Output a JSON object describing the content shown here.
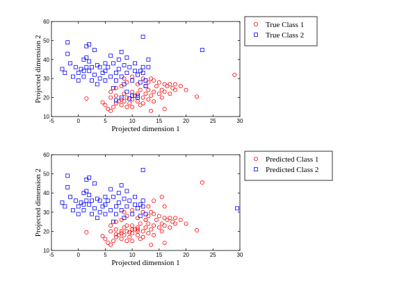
{
  "chart_data": [
    {
      "type": "scatter",
      "xlabel": "Projected dimension 1",
      "ylabel": "Projected dimension 2",
      "xlim": [
        -5,
        30
      ],
      "ylim": [
        10,
        60
      ],
      "xticks": [
        "-5",
        "0",
        "5",
        "10",
        "15",
        "20",
        "25",
        "30"
      ],
      "yticks": [
        "10",
        "20",
        "30",
        "40",
        "50",
        "60"
      ],
      "legend_position": "outside-top-right",
      "series": [
        {
          "name": "True Class 1",
          "marker": "circle",
          "color": "#ff0000",
          "points": [
            [
              1.5,
              19.5
            ],
            [
              4.5,
              17.5
            ],
            [
              5,
              16
            ],
            [
              5.5,
              14
            ],
            [
              6,
              13
            ],
            [
              6,
              20
            ],
            [
              6.5,
              15
            ],
            [
              7,
              17
            ],
            [
              7,
              21
            ],
            [
              7.5,
              18
            ],
            [
              8,
              16
            ],
            [
              8,
              19
            ],
            [
              8.5,
              22
            ],
            [
              8.5,
              18
            ],
            [
              9,
              15
            ],
            [
              9,
              20
            ],
            [
              9.5,
              17
            ],
            [
              10,
              23
            ],
            [
              10,
              19
            ],
            [
              10,
              15
            ],
            [
              10.5,
              21
            ],
            [
              11,
              18
            ],
            [
              11,
              22
            ],
            [
              11.5,
              16
            ],
            [
              11.5,
              24
            ],
            [
              12,
              20
            ],
            [
              12,
              17
            ],
            [
              12.5,
              22
            ],
            [
              12.5,
              26
            ],
            [
              13,
              19
            ],
            [
              13,
              24
            ],
            [
              13,
              28
            ],
            [
              13.5,
              13
            ],
            [
              13.5,
              21
            ],
            [
              14,
              23
            ],
            [
              14,
              18
            ],
            [
              14.5,
              26
            ],
            [
              15,
              22
            ],
            [
              15,
              28
            ],
            [
              15.5,
              20
            ],
            [
              15.5,
              24
            ],
            [
              16,
              14
            ],
            [
              16,
              23
            ],
            [
              16.5,
              26
            ],
            [
              17,
              22
            ],
            [
              17,
              27
            ],
            [
              17.5,
              25
            ],
            [
              18,
              24
            ],
            [
              18,
              27
            ],
            [
              19,
              26
            ],
            [
              20,
              24
            ],
            [
              22,
              20.5
            ],
            [
              29,
              32
            ],
            [
              8,
              26
            ],
            [
              9,
              28
            ],
            [
              10,
              31
            ],
            [
              12,
              30
            ],
            [
              14,
              29
            ],
            [
              8.5,
              30
            ],
            [
              11,
              27
            ],
            [
              6,
              23
            ],
            [
              7,
              25
            ],
            [
              16,
              27
            ],
            [
              13.5,
              30
            ]
          ]
        },
        {
          "name": "True Class 2",
          "marker": "square",
          "color": "#0000ff",
          "points": [
            [
              -3,
              35
            ],
            [
              -2.5,
              33
            ],
            [
              -2,
              49
            ],
            [
              -2,
              43
            ],
            [
              -1.5,
              38
            ],
            [
              -1,
              31
            ],
            [
              -0.5,
              36
            ],
            [
              0,
              33
            ],
            [
              0,
              29
            ],
            [
              0.5,
              35
            ],
            [
              1,
              40
            ],
            [
              1,
              34
            ],
            [
              1,
              31
            ],
            [
              1.5,
              47
            ],
            [
              1.5,
              41
            ],
            [
              1.5,
              36
            ],
            [
              2,
              48
            ],
            [
              2,
              39
            ],
            [
              2,
              34
            ],
            [
              2.5,
              29
            ],
            [
              2.5,
              36
            ],
            [
              3,
              45
            ],
            [
              3,
              32
            ],
            [
              3.5,
              37
            ],
            [
              3.5,
              27
            ],
            [
              4,
              36
            ],
            [
              4,
              30
            ],
            [
              4.5,
              33
            ],
            [
              5,
              38
            ],
            [
              5,
              34
            ],
            [
              5,
              29
            ],
            [
              5.5,
              36
            ],
            [
              6,
              31
            ],
            [
              6,
              42
            ],
            [
              6.5,
              38
            ],
            [
              6.5,
              25
            ],
            [
              7,
              33
            ],
            [
              7,
              29
            ],
            [
              7.5,
              40
            ],
            [
              7.5,
              35
            ],
            [
              8,
              44
            ],
            [
              8,
              31
            ],
            [
              8.5,
              37
            ],
            [
              8.5,
              27
            ],
            [
              9,
              41
            ],
            [
              9,
              33
            ],
            [
              9,
              23
            ],
            [
              9.5,
              36
            ],
            [
              10,
              29
            ],
            [
              10,
              21
            ],
            [
              10.5,
              34
            ],
            [
              10.5,
              38
            ],
            [
              11,
              32
            ],
            [
              11,
              21
            ],
            [
              11.5,
              34
            ],
            [
              11.5,
              28
            ],
            [
              12,
              52
            ],
            [
              12,
              36
            ],
            [
              12,
              33
            ],
            [
              12.5,
              29
            ],
            [
              13,
              40
            ],
            [
              13,
              36
            ],
            [
              23,
              45
            ],
            [
              8,
              20
            ],
            [
              9.5,
              19.5
            ],
            [
              11,
              20
            ],
            [
              7,
              18.5
            ],
            [
              12.5,
              26
            ]
          ]
        }
      ]
    },
    {
      "type": "scatter",
      "xlabel": "Projected dimension 1",
      "ylabel": "Projected dimension 2",
      "xlim": [
        -5,
        30
      ],
      "ylim": [
        10,
        60
      ],
      "xticks": [
        "-5",
        "0",
        "5",
        "10",
        "15",
        "20",
        "25",
        "30"
      ],
      "yticks": [
        "10",
        "20",
        "30",
        "40",
        "50",
        "60"
      ],
      "legend_position": "outside-top-right",
      "series": [
        {
          "name": "Predicted Class 1",
          "marker": "circle",
          "color": "#ff0000",
          "points": [
            [
              1.5,
              19.5
            ],
            [
              4.5,
              17.5
            ],
            [
              5,
              16
            ],
            [
              5.5,
              14
            ],
            [
              6,
              13
            ],
            [
              6,
              20
            ],
            [
              6.5,
              15
            ],
            [
              7,
              17
            ],
            [
              7,
              21
            ],
            [
              7.5,
              18
            ],
            [
              8,
              16
            ],
            [
              8,
              19
            ],
            [
              8.5,
              22
            ],
            [
              8.5,
              18
            ],
            [
              9,
              15
            ],
            [
              9,
              20
            ],
            [
              9.5,
              17
            ],
            [
              10,
              23
            ],
            [
              10,
              19
            ],
            [
              10,
              15
            ],
            [
              10.5,
              21
            ],
            [
              11,
              18
            ],
            [
              11,
              22
            ],
            [
              11.5,
              16
            ],
            [
              11.5,
              24
            ],
            [
              12,
              20
            ],
            [
              12,
              17
            ],
            [
              12.5,
              22
            ],
            [
              12.5,
              26
            ],
            [
              13,
              19
            ],
            [
              13,
              24
            ],
            [
              13,
              28
            ],
            [
              13.5,
              13
            ],
            [
              13.5,
              21
            ],
            [
              14,
              23
            ],
            [
              14,
              18
            ],
            [
              14.5,
              26
            ],
            [
              15,
              22
            ],
            [
              15,
              28
            ],
            [
              15.5,
              20
            ],
            [
              15.5,
              24
            ],
            [
              16,
              14
            ],
            [
              16,
              23
            ],
            [
              16.5,
              26
            ],
            [
              17,
              22
            ],
            [
              17,
              27
            ],
            [
              17.5,
              25
            ],
            [
              18,
              24
            ],
            [
              18,
              27
            ],
            [
              19,
              26
            ],
            [
              20,
              24
            ],
            [
              22,
              20.5
            ],
            [
              23,
              45.5
            ],
            [
              8,
              20
            ],
            [
              9.5,
              19.5
            ],
            [
              11,
              20
            ],
            [
              7,
              18.5
            ],
            [
              8,
              26
            ],
            [
              9,
              28
            ],
            [
              10,
              31
            ],
            [
              12,
              30
            ],
            [
              14,
              29
            ],
            [
              13,
              33
            ],
            [
              14,
              36
            ],
            [
              15.5,
              38
            ],
            [
              16,
              33
            ],
            [
              8.5,
              30
            ],
            [
              11,
              27
            ],
            [
              6,
              23
            ],
            [
              7,
              25
            ],
            [
              16,
              27
            ],
            [
              13.5,
              30
            ],
            [
              12.5,
              26
            ],
            [
              9,
              23
            ],
            [
              10,
              21
            ],
            [
              11,
              21
            ]
          ]
        },
        {
          "name": "Predicted Class 2",
          "marker": "square",
          "color": "#0000ff",
          "points": [
            [
              -3,
              35
            ],
            [
              -2.5,
              33
            ],
            [
              -2,
              49
            ],
            [
              -2,
              43
            ],
            [
              -1.5,
              38
            ],
            [
              -1,
              31
            ],
            [
              -0.5,
              36
            ],
            [
              0,
              33
            ],
            [
              0,
              29
            ],
            [
              0.5,
              35
            ],
            [
              1,
              40
            ],
            [
              1,
              34
            ],
            [
              1,
              31
            ],
            [
              1.5,
              47
            ],
            [
              1.5,
              41
            ],
            [
              1.5,
              36
            ],
            [
              2,
              48
            ],
            [
              2,
              39
            ],
            [
              2,
              34
            ],
            [
              2.5,
              29
            ],
            [
              2.5,
              36
            ],
            [
              3,
              45
            ],
            [
              3,
              32
            ],
            [
              3.5,
              37
            ],
            [
              3.5,
              27
            ],
            [
              4,
              36
            ],
            [
              4,
              30
            ],
            [
              4.5,
              33
            ],
            [
              5,
              38
            ],
            [
              5,
              34
            ],
            [
              5,
              29
            ],
            [
              5.5,
              36
            ],
            [
              6,
              31
            ],
            [
              6,
              42
            ],
            [
              6.5,
              38
            ],
            [
              6.5,
              25
            ],
            [
              7,
              33
            ],
            [
              7,
              29
            ],
            [
              7.5,
              40
            ],
            [
              7.5,
              35
            ],
            [
              8,
              44
            ],
            [
              8,
              31
            ],
            [
              8.5,
              37
            ],
            [
              8.5,
              27
            ],
            [
              9,
              41
            ],
            [
              9,
              33
            ],
            [
              9.5,
              36
            ],
            [
              10,
              29
            ],
            [
              10.5,
              34
            ],
            [
              10.5,
              38
            ],
            [
              11,
              32
            ],
            [
              11.5,
              34
            ],
            [
              11.5,
              28
            ],
            [
              12,
              52
            ],
            [
              12,
              36
            ],
            [
              12,
              33
            ],
            [
              12.5,
              29
            ],
            [
              29.5,
              32
            ]
          ]
        }
      ]
    }
  ]
}
